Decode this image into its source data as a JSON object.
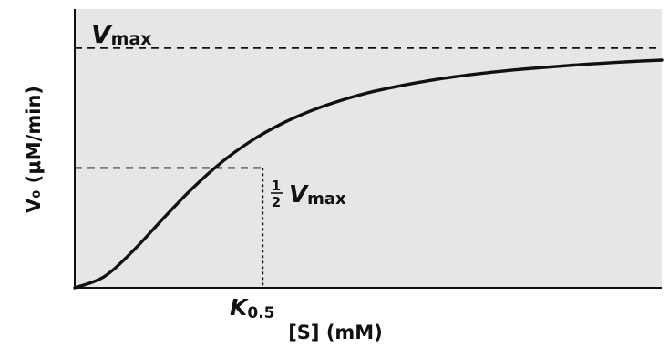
{
  "chart_data": {
    "type": "line",
    "xlabel": "[S] (mM)",
    "ylabel": "V₀ (μM/min)",
    "xlim": [
      0,
      10
    ],
    "ylim": [
      0,
      10
    ],
    "grid": false,
    "background_color": "#e6e6e6",
    "line_color": "#111111",
    "series": [
      {
        "x": [
          0,
          0.5,
          1,
          1.5,
          2,
          2.5,
          3,
          3.5,
          4,
          4.5,
          5,
          5.5,
          6,
          6.5,
          7,
          7.5,
          8,
          8.5,
          9,
          9.5,
          10
        ],
        "y": [
          0,
          0.4,
          1.34,
          2.47,
          3.56,
          4.5,
          5.26,
          5.86,
          6.33,
          6.7,
          7.0,
          7.23,
          7.42,
          7.58,
          7.71,
          7.82,
          7.91,
          7.99,
          8.06,
          8.12,
          8.17
        ]
      }
    ],
    "reference_lines": {
      "vmax": {
        "y": 8.6,
        "label": "V",
        "label_sub": "max"
      },
      "half_vmax": {
        "y": 4.3,
        "label_num": "1",
        "label_den": "2",
        "label": "V",
        "label_sub": "max"
      },
      "k05": {
        "x": 3.2,
        "label": "K",
        "label_sub": "0.5"
      }
    }
  }
}
